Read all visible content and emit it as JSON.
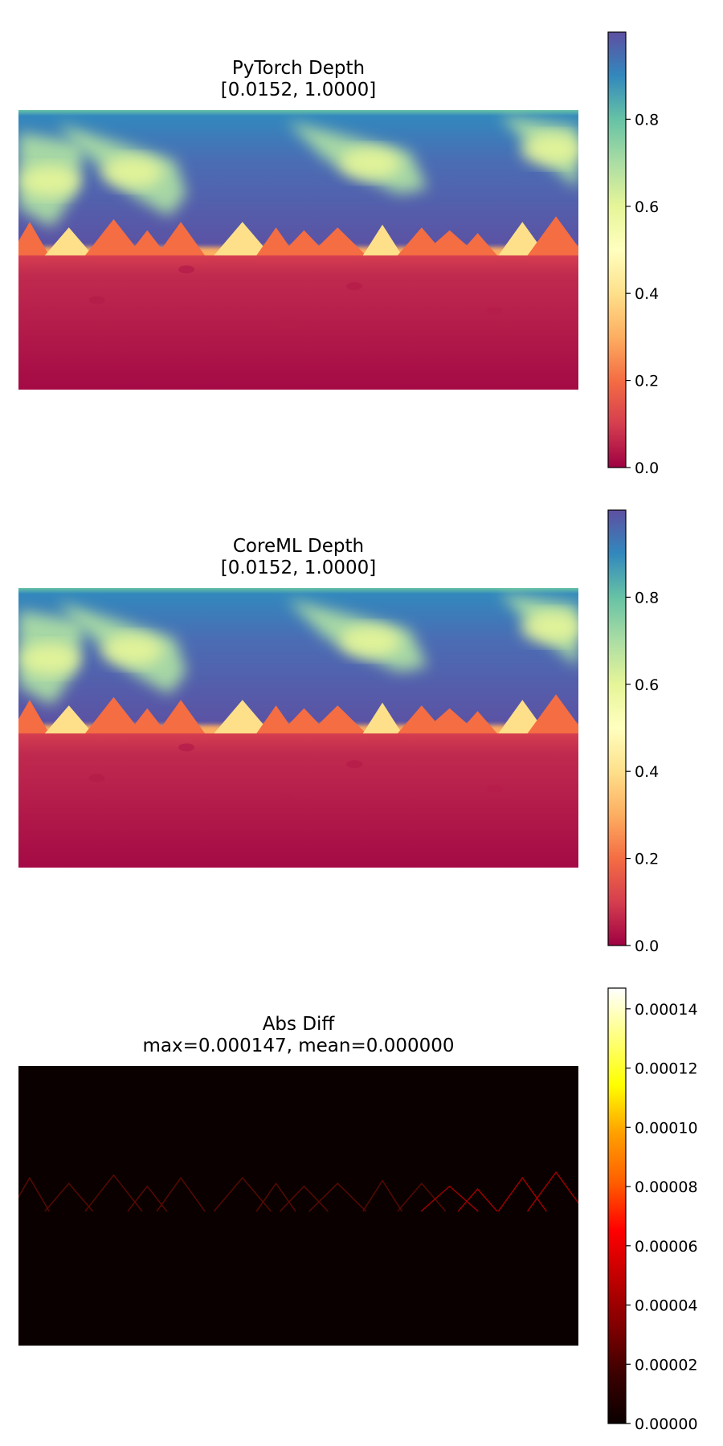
{
  "chart_data": [
    {
      "type": "heatmap",
      "title": "PyTorch Depth",
      "subtitle": "[0.0152, 1.0000]",
      "colormap": "Spectral",
      "colorbar": {
        "range": [
          0.0,
          1.0
        ],
        "ticks": [
          "0.0",
          "0.2",
          "0.4",
          "0.6",
          "0.8"
        ]
      },
      "image": {
        "value_range": [
          0.0152,
          1.0
        ],
        "description_values": {
          "sky_background": 0.92,
          "cloud_streaks": 0.6,
          "horizon_band": 0.25,
          "ground": 0.02
        },
        "triangle_peaks_x_fraction": [
          0.02,
          0.09,
          0.17,
          0.23,
          0.29,
          0.4,
          0.46,
          0.51,
          0.57,
          0.65,
          0.72,
          0.77,
          0.82,
          0.9,
          0.96
        ],
        "triangle_peaks_height": [
          0.6,
          0.6,
          0.6,
          0.4,
          0.6,
          0.5,
          0.5,
          0.5,
          0.6,
          0.5,
          0.6,
          0.45,
          0.5,
          0.6,
          0.7
        ]
      }
    },
    {
      "type": "heatmap",
      "title": "CoreML Depth",
      "subtitle": "[0.0152, 1.0000]",
      "colormap": "Spectral",
      "colorbar": {
        "range": [
          0.0,
          1.0
        ],
        "ticks": [
          "0.0",
          "0.2",
          "0.4",
          "0.6",
          "0.8"
        ]
      },
      "image": {
        "value_range": [
          0.0152,
          1.0
        ]
      }
    },
    {
      "type": "heatmap",
      "title": "Abs Diff",
      "subtitle": "max=0.000147, mean=0.000000",
      "colormap": "hot",
      "colorbar": {
        "range": [
          0.0,
          0.000147
        ],
        "ticks": [
          "0.00000",
          "0.00002",
          "0.00004",
          "0.00006",
          "0.00008",
          "0.00010",
          "0.00012",
          "0.00014"
        ]
      },
      "image": {
        "value_range": [
          0.0,
          0.000147
        ]
      }
    }
  ]
}
